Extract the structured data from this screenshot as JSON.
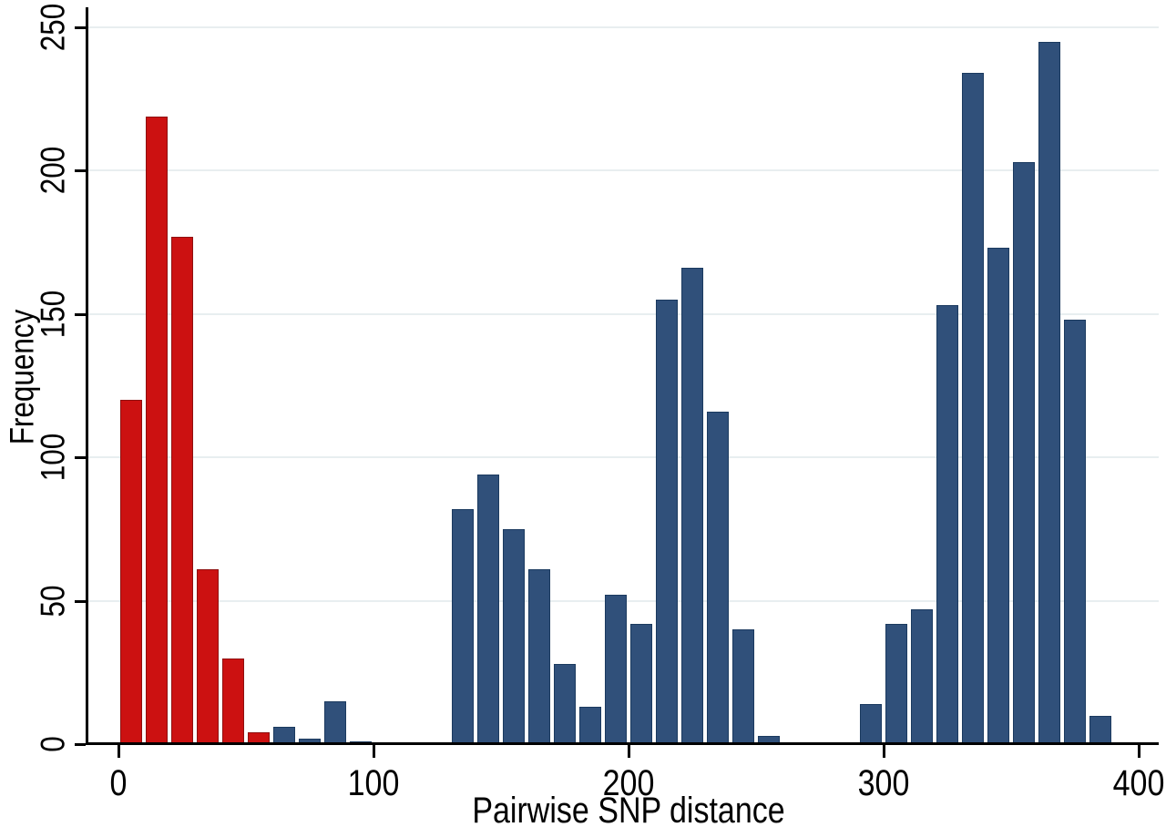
{
  "chart_data": {
    "type": "bar",
    "subtype": "histogram",
    "title": "",
    "xlabel": "Pairwise SNP distance",
    "ylabel": "Frequency",
    "x_ticks": [
      0,
      100,
      200,
      300,
      400
    ],
    "y_ticks": [
      0,
      50,
      100,
      150,
      200,
      250
    ],
    "xlim": [
      -12,
      408
    ],
    "ylim": [
      0,
      257
    ],
    "grid": "horizontal",
    "legend": "none",
    "bin_width": 10,
    "colors": {
      "red_fill": "#cc1111",
      "red_border": "#8f1010",
      "blue_fill": "#30507a",
      "blue_border": "#1b3a5f",
      "gridline": "#e8eef0",
      "axis": "#000000",
      "background": "#ffffff",
      "text": "#000000"
    },
    "series": [
      {
        "name": "red-cluster",
        "color_key": "red",
        "bins": [
          [
            0,
            120
          ],
          [
            10,
            219
          ],
          [
            20,
            177
          ],
          [
            30,
            61
          ],
          [
            40,
            30
          ],
          [
            50,
            4
          ]
        ]
      },
      {
        "name": "blue-cluster",
        "color_key": "blue",
        "bins": [
          [
            60,
            6
          ],
          [
            70,
            2
          ],
          [
            80,
            15
          ],
          [
            90,
            1
          ],
          [
            130,
            82
          ],
          [
            140,
            94
          ],
          [
            150,
            75
          ],
          [
            160,
            61
          ],
          [
            170,
            28
          ],
          [
            180,
            13
          ],
          [
            190,
            52
          ],
          [
            200,
            42
          ],
          [
            210,
            155
          ],
          [
            220,
            166
          ],
          [
            230,
            116
          ],
          [
            240,
            40
          ],
          [
            250,
            3
          ],
          [
            290,
            14
          ],
          [
            300,
            42
          ],
          [
            310,
            47
          ],
          [
            320,
            153
          ],
          [
            330,
            234
          ],
          [
            340,
            173
          ],
          [
            350,
            203
          ],
          [
            360,
            245
          ],
          [
            370,
            148
          ],
          [
            380,
            10
          ]
        ]
      }
    ]
  }
}
